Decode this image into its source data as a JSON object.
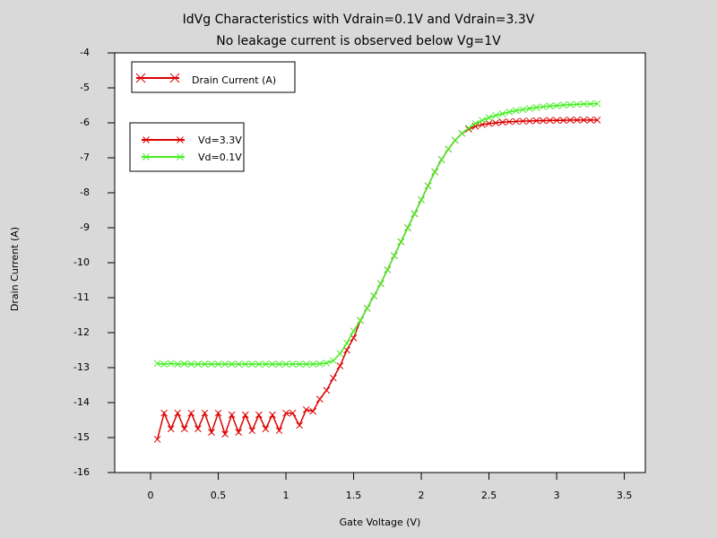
{
  "chart_data": {
    "type": "line",
    "title": "IdVg Characteristics with Vdrain=0.1V and Vdrain=3.3V",
    "subtitle": "No leakage current is observed below Vg=1V",
    "x_label": "Gate Voltage (V)",
    "y_label": "Drain Current (A)",
    "legend_box_label": "Drain Current (A)",
    "xlim": [
      -0.265,
      3.655
    ],
    "ylim": [
      -16,
      -4
    ],
    "xticks": [
      0,
      0.5,
      1,
      1.5,
      2,
      2.5,
      3,
      3.5
    ],
    "yticks": [
      -16,
      -15,
      -14,
      -13,
      -12,
      -11,
      -10,
      -9,
      -8,
      -7,
      -6,
      -5,
      -4
    ],
    "grid": false,
    "legend": "upper left",
    "marker": "x",
    "x": [
      0.05,
      0.1,
      0.15,
      0.2,
      0.25,
      0.3,
      0.35,
      0.4,
      0.45,
      0.5,
      0.55,
      0.6,
      0.65,
      0.7,
      0.75,
      0.8,
      0.85,
      0.9,
      0.95,
      1,
      1.05,
      1.1,
      1.15,
      1.2,
      1.25,
      1.3,
      1.35,
      1.4,
      1.45,
      1.5,
      1.55,
      1.6,
      1.65,
      1.7,
      1.75,
      1.8,
      1.85,
      1.9,
      1.95,
      2,
      2.05,
      2.1,
      2.15,
      2.2,
      2.25,
      2.3,
      2.35,
      2.4,
      2.45,
      2.5,
      2.55,
      2.6,
      2.65,
      2.7,
      2.75,
      2.8,
      2.85,
      2.9,
      2.95,
      3,
      3.05,
      3.1,
      3.15,
      3.2,
      3.25,
      3.3
    ],
    "series": [
      {
        "name": "Vd=3.3V",
        "color": "#dd0000",
        "values": [
          -15.05,
          -14.3,
          -14.75,
          -14.3,
          -14.75,
          -14.3,
          -14.75,
          -14.3,
          -14.85,
          -14.3,
          -14.9,
          -14.35,
          -14.85,
          -14.35,
          -14.8,
          -14.35,
          -14.75,
          -14.35,
          -14.8,
          -14.3,
          -14.3,
          -14.65,
          -14.2,
          -14.25,
          -13.9,
          -13.65,
          -13.3,
          -12.95,
          -12.5,
          -12.15,
          -11.65,
          -11.3,
          -10.95,
          -10.6,
          -10.2,
          -9.8,
          -9.4,
          -9.0,
          -8.6,
          -8.2,
          -7.8,
          -7.4,
          -7.05,
          -6.75,
          -6.5,
          -6.3,
          -6.18,
          -6.1,
          -6.05,
          -6.02,
          -6.0,
          -5.98,
          -5.97,
          -5.96,
          -5.95,
          -5.95,
          -5.94,
          -5.94,
          -5.93,
          -5.93,
          -5.93,
          -5.92,
          -5.92,
          -5.92,
          -5.92,
          -5.92
        ]
      },
      {
        "name": "Vd=0.1V",
        "color": "#44ee22",
        "values": [
          -12.88,
          -12.9,
          -12.88,
          -12.9,
          -12.89,
          -12.9,
          -12.9,
          -12.9,
          -12.9,
          -12.9,
          -12.9,
          -12.9,
          -12.9,
          -12.9,
          -12.9,
          -12.9,
          -12.9,
          -12.9,
          -12.9,
          -12.9,
          -12.9,
          -12.9,
          -12.9,
          -12.9,
          -12.89,
          -12.87,
          -12.8,
          -12.6,
          -12.3,
          -11.95,
          -11.65,
          -11.3,
          -10.95,
          -10.6,
          -10.2,
          -9.8,
          -9.4,
          -9.0,
          -8.6,
          -8.2,
          -7.8,
          -7.4,
          -7.05,
          -6.75,
          -6.5,
          -6.3,
          -6.15,
          -6.02,
          -5.93,
          -5.85,
          -5.79,
          -5.74,
          -5.69,
          -5.65,
          -5.62,
          -5.59,
          -5.56,
          -5.54,
          -5.52,
          -5.51,
          -5.49,
          -5.48,
          -5.47,
          -5.46,
          -5.46,
          -5.45
        ]
      }
    ]
  }
}
